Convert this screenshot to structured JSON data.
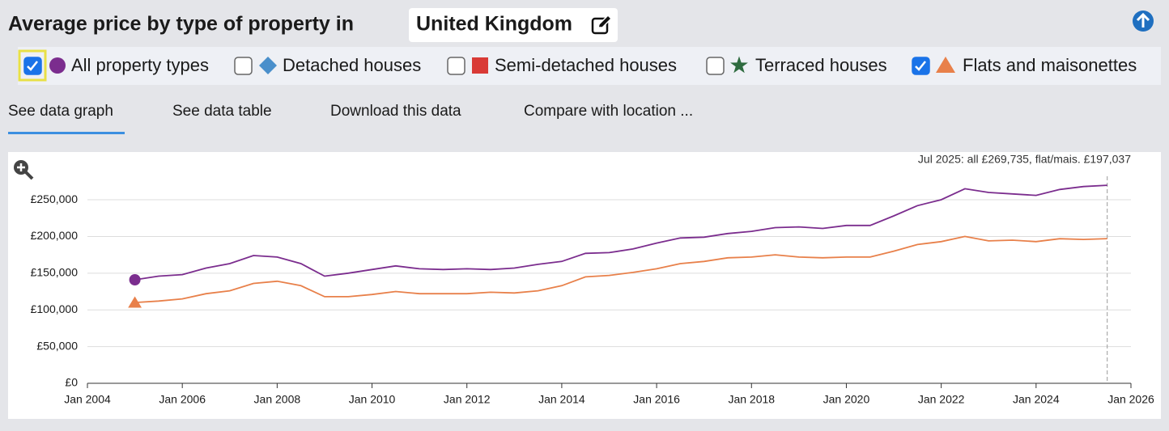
{
  "header": {
    "title": "Average price by type of property in",
    "location": "United Kingdom"
  },
  "other_types": [
    {
      "label": "Detached houses",
      "color": "#4a8fcb",
      "marker": "diamond"
    },
    {
      "label": "Semi-detached houses",
      "color": "#d93a36",
      "marker": "square"
    },
    {
      "label": "Terraced houses",
      "color": "#2e6b3f",
      "marker": "star"
    }
  ],
  "tabs": [
    "See data graph",
    "See data table",
    "Download this data",
    "Compare with location ..."
  ],
  "chart_data": {
    "type": "line",
    "annotation": "Jul 2025: all £269,735, flat/mais. £197,037",
    "x": [
      "2005-01",
      "2005-07",
      "2006-01",
      "2006-07",
      "2007-01",
      "2007-07",
      "2008-01",
      "2008-07",
      "2009-01",
      "2009-07",
      "2010-01",
      "2010-07",
      "2011-01",
      "2011-07",
      "2012-01",
      "2012-07",
      "2013-01",
      "2013-07",
      "2014-01",
      "2014-07",
      "2015-01",
      "2015-07",
      "2016-01",
      "2016-07",
      "2017-01",
      "2017-07",
      "2018-01",
      "2018-07",
      "2019-01",
      "2019-07",
      "2020-01",
      "2020-07",
      "2021-01",
      "2021-07",
      "2022-01",
      "2022-07",
      "2023-01",
      "2023-07",
      "2024-01",
      "2024-07",
      "2025-01",
      "2025-07"
    ],
    "series": [
      {
        "name": "All property types",
        "color": "#7b2d8e",
        "marker": "circle",
        "values": [
          141000,
          146000,
          148000,
          157000,
          163000,
          174000,
          172000,
          163000,
          146000,
          150000,
          155000,
          160000,
          156000,
          155000,
          156000,
          155000,
          157000,
          162000,
          166000,
          177000,
          178000,
          183000,
          191000,
          198000,
          199000,
          204000,
          207000,
          212000,
          213000,
          211000,
          215000,
          215000,
          228000,
          242000,
          250000,
          265000,
          260000,
          258000,
          256000,
          264000,
          268000,
          269735
        ]
      },
      {
        "name": "Flats and maisonettes",
        "color": "#e8804a",
        "marker": "triangle",
        "values": [
          110000,
          112000,
          115000,
          122000,
          126000,
          136000,
          139000,
          133000,
          118000,
          118000,
          121000,
          125000,
          122000,
          122000,
          122000,
          124000,
          123000,
          126000,
          133000,
          145000,
          147000,
          151000,
          156000,
          163000,
          166000,
          171000,
          172000,
          175000,
          172000,
          171000,
          172000,
          172000,
          180000,
          189000,
          193000,
          200000,
          194000,
          195000,
          193000,
          197000,
          196000,
          197037
        ]
      }
    ],
    "xlim": [
      "2004-01",
      "2026-01"
    ],
    "xticks": [
      {
        "value": "2004-01",
        "label": "Jan 2004"
      },
      {
        "value": "2006-01",
        "label": "Jan 2006"
      },
      {
        "value": "2008-01",
        "label": "Jan 2008"
      },
      {
        "value": "2010-01",
        "label": "Jan 2010"
      },
      {
        "value": "2012-01",
        "label": "Jan 2012"
      },
      {
        "value": "2014-01",
        "label": "Jan 2014"
      },
      {
        "value": "2016-01",
        "label": "Jan 2016"
      },
      {
        "value": "2018-01",
        "label": "Jan 2018"
      },
      {
        "value": "2020-01",
        "label": "Jan 2020"
      },
      {
        "value": "2022-01",
        "label": "Jan 2022"
      },
      {
        "value": "2024-01",
        "label": "Jan 2024"
      },
      {
        "value": "2026-01",
        "label": "Jan 2026"
      }
    ],
    "ylim": [
      0,
      282000
    ],
    "yticks": [
      {
        "value": 0,
        "label": "£0"
      },
      {
        "value": 50000,
        "label": "£50,000"
      },
      {
        "value": 100000,
        "label": "£100,000"
      },
      {
        "value": 150000,
        "label": "£150,000"
      },
      {
        "value": 200000,
        "label": "£200,000"
      },
      {
        "value": 250000,
        "label": "£250,000"
      }
    ],
    "grid": true
  }
}
